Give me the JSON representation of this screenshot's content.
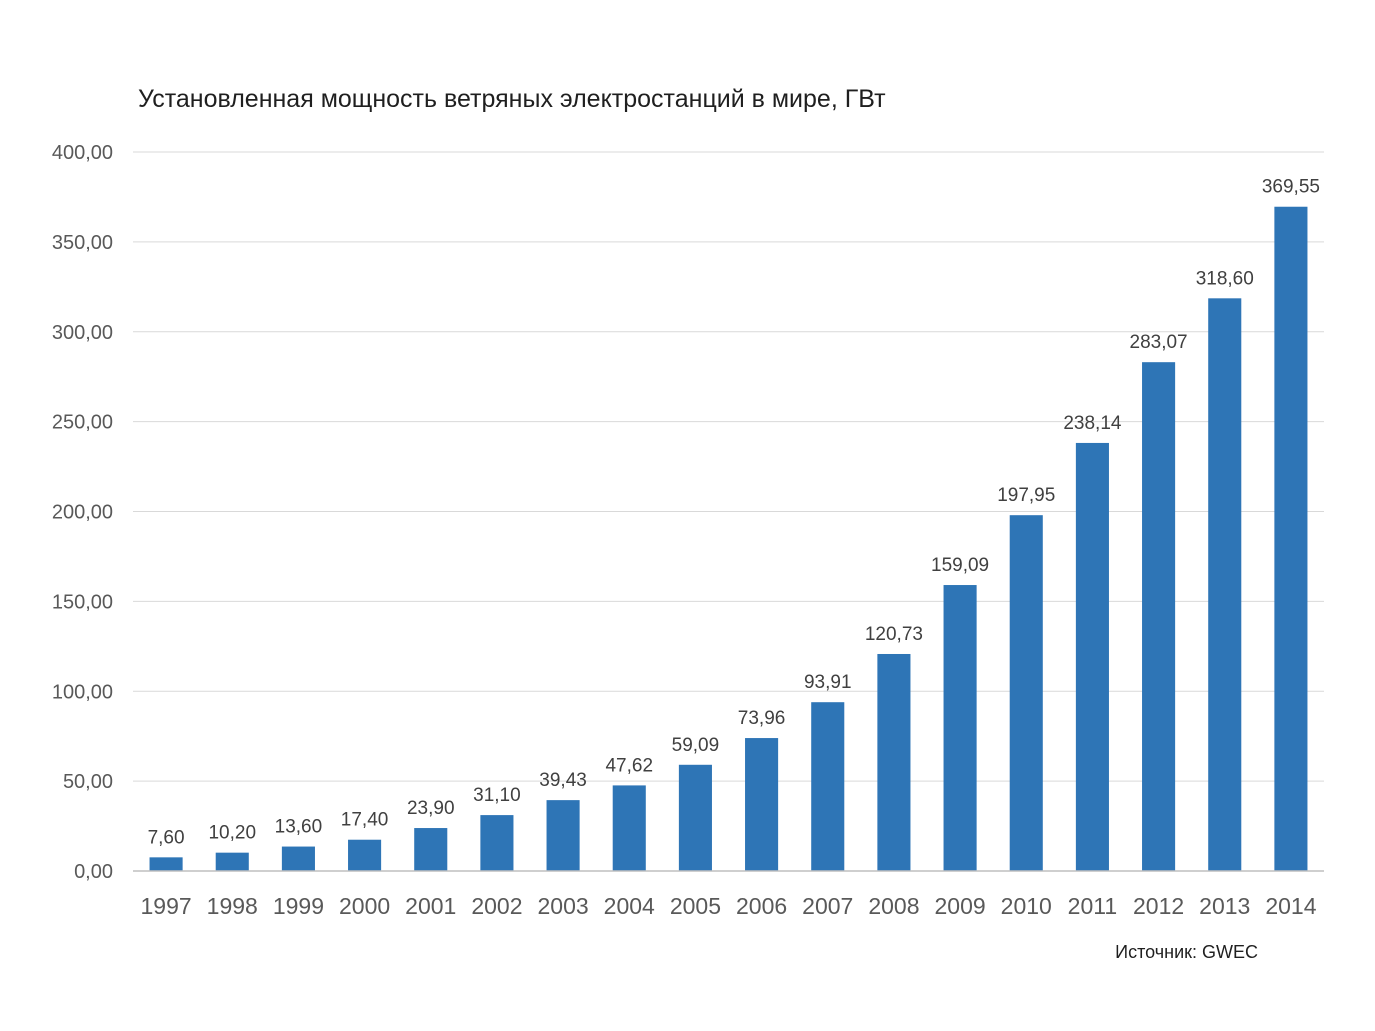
{
  "chart_data": {
    "type": "bar",
    "title": "Установленная мощность ветряных электростанций в мире, ГВт",
    "xlabel": "",
    "ylabel": "",
    "categories": [
      "1997",
      "1998",
      "1999",
      "2000",
      "2001",
      "2002",
      "2003",
      "2004",
      "2005",
      "2006",
      "2007",
      "2008",
      "2009",
      "2010",
      "2011",
      "2012",
      "2013",
      "2014"
    ],
    "values": [
      7.6,
      10.2,
      13.6,
      17.4,
      23.9,
      31.1,
      39.43,
      47.62,
      59.09,
      73.96,
      93.91,
      120.73,
      159.09,
      197.95,
      238.14,
      283.07,
      318.6,
      369.55
    ],
    "data_labels": [
      "7,60",
      "10,20",
      "13,60",
      "17,40",
      "23,90",
      "31,10",
      "39,43",
      "47,62",
      "59,09",
      "73,96",
      "93,91",
      "120,73",
      "159,09",
      "197,95",
      "238,14",
      "283,07",
      "318,60",
      "369,55"
    ],
    "ylim": [
      0,
      400
    ],
    "yticks": [
      0,
      50,
      100,
      150,
      200,
      250,
      300,
      350,
      400
    ],
    "ytick_labels": [
      "0,00",
      "50,00",
      "100,00",
      "150,00",
      "200,00",
      "250,00",
      "300,00",
      "350,00",
      "400,00"
    ],
    "grid": true,
    "legend": "none",
    "bar_color": "#2e75b6",
    "source": "Источник: GWEC"
  }
}
